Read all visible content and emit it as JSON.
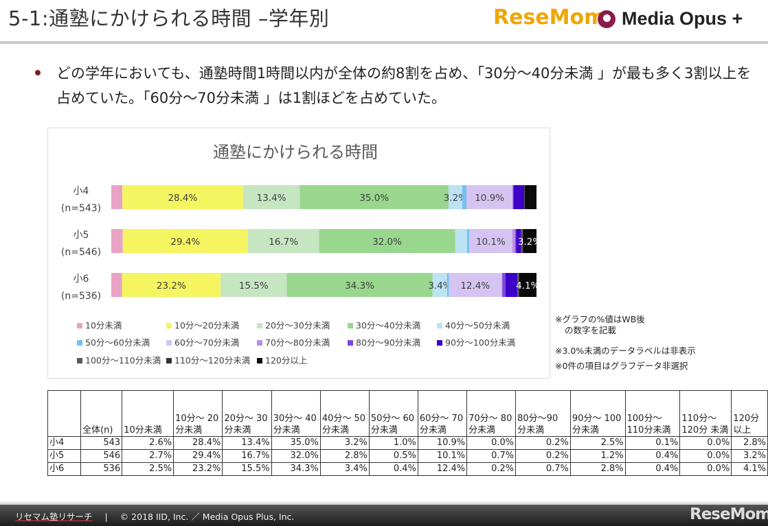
{
  "header": {
    "title": "5-1:通塾にかけられる時間 –学年別",
    "logo_resemom": "ReseMom",
    "logo_opus": "Media Opus +"
  },
  "summary": "どの学年においても、通塾時間1時間以内が全体の約8割を占め、「30分～40分未満 」が最も多く3割以上を占めていた。「60分～70分未満 」は1割ほどを占めていた。",
  "notes": {
    "note1_line1": "※グラフの%値はWB後",
    "note1_line2": "の数字を記載",
    "note2": "※3.0%未満のデータラベルは非表示",
    "note3": "※0件の項目はグラフデータ非選択"
  },
  "chart_data": {
    "type": "bar",
    "stacked": true,
    "orientation": "horizontal",
    "percent": true,
    "title": "通塾にかけられる時間",
    "categories": [
      "小4",
      "小5",
      "小6"
    ],
    "category_sublabels": [
      "(n=543)",
      "(n=546)",
      "(n=536)"
    ],
    "series": [
      {
        "name": "10分未満",
        "values": [
          2.6,
          2.7,
          2.5
        ],
        "color": "#e8a3c4"
      },
      {
        "name": "10分～20分未満",
        "values": [
          28.4,
          29.4,
          23.2
        ],
        "color": "#f5f562"
      },
      {
        "name": "20分～30分未満",
        "values": [
          13.4,
          16.7,
          15.5
        ],
        "color": "#c5e6c1"
      },
      {
        "name": "30分～40分未満",
        "values": [
          35.0,
          32.0,
          34.3
        ],
        "color": "#99d68e"
      },
      {
        "name": "40分～50分未満",
        "values": [
          3.2,
          2.8,
          3.4
        ],
        "color": "#bde2f4"
      },
      {
        "name": "50分～60分未満",
        "values": [
          1.0,
          0.5,
          0.4
        ],
        "color": "#73c2ee"
      },
      {
        "name": "60分～70分未満",
        "values": [
          10.9,
          10.1,
          12.4
        ],
        "color": "#d5c4f1"
      },
      {
        "name": "70分～80分未満",
        "values": [
          0.0,
          0.7,
          0.2
        ],
        "color": "#b98ee8"
      },
      {
        "name": "80分～90分未満",
        "values": [
          0.2,
          0.2,
          0.7
        ],
        "color": "#7d46e0"
      },
      {
        "name": "90分～100分未満",
        "values": [
          2.5,
          1.2,
          2.8
        ],
        "color": "#3c00c8"
      },
      {
        "name": "100分～110分未満",
        "values": [
          0.1,
          0.4,
          0.4
        ],
        "color": "#595959"
      },
      {
        "name": "110分～120分未満",
        "values": [
          0.0,
          0.0,
          0.0
        ],
        "color": "#333333"
      },
      {
        "name": "120分以上",
        "values": [
          2.8,
          3.2,
          4.1
        ],
        "color": "#0a0a0a"
      }
    ],
    "shown_labels": [
      [
        "28.4%",
        "13.4%",
        "35.0%",
        "3.2%",
        "10.9%"
      ],
      [
        "29.4%",
        "16.7%",
        "32.0%",
        "10.1%",
        "3.2%"
      ],
      [
        "23.2%",
        "15.5%",
        "34.3%",
        "3.4%",
        "12.4%",
        "4.1%"
      ]
    ],
    "xlim": [
      0,
      100
    ],
    "legend_position": "bottom",
    "grid": false
  },
  "table": {
    "headers": [
      "",
      "全体(n)",
      "10分未満",
      "10分～ 20分未満",
      "20分～ 30分未満",
      "30分～ 40分未満",
      "40分～ 50分未満",
      "50分～ 60分未満",
      "60分～ 70分未満",
      "70分～ 80分未満",
      "80分～90 分未満",
      "90分～ 100分未満",
      "100分～ 110分未満",
      "110分～ 120分 未満",
      "120分 以上"
    ],
    "rows": [
      [
        "小4",
        "543",
        "2.6%",
        "28.4%",
        "13.4%",
        "35.0%",
        "3.2%",
        "1.0%",
        "10.9%",
        "0.0%",
        "0.2%",
        "2.5%",
        "0.1%",
        "0.0%",
        "2.8%"
      ],
      [
        "小5",
        "546",
        "2.7%",
        "29.4%",
        "16.7%",
        "32.0%",
        "2.8%",
        "0.5%",
        "10.1%",
        "0.7%",
        "0.2%",
        "1.2%",
        "0.4%",
        "0.0%",
        "3.2%"
      ],
      [
        "小6",
        "536",
        "2.5%",
        "23.2%",
        "15.5%",
        "34.3%",
        "3.4%",
        "0.4%",
        "12.4%",
        "0.2%",
        "0.7%",
        "2.8%",
        "0.4%",
        "0.0%",
        "4.1%"
      ]
    ]
  },
  "footer": {
    "brand": "リセマム塾リサーチ",
    "separator": "|",
    "copyright": "© 2018 IID, Inc. ／ Media Opus Plus, Inc.",
    "logo": "ReseMom"
  }
}
